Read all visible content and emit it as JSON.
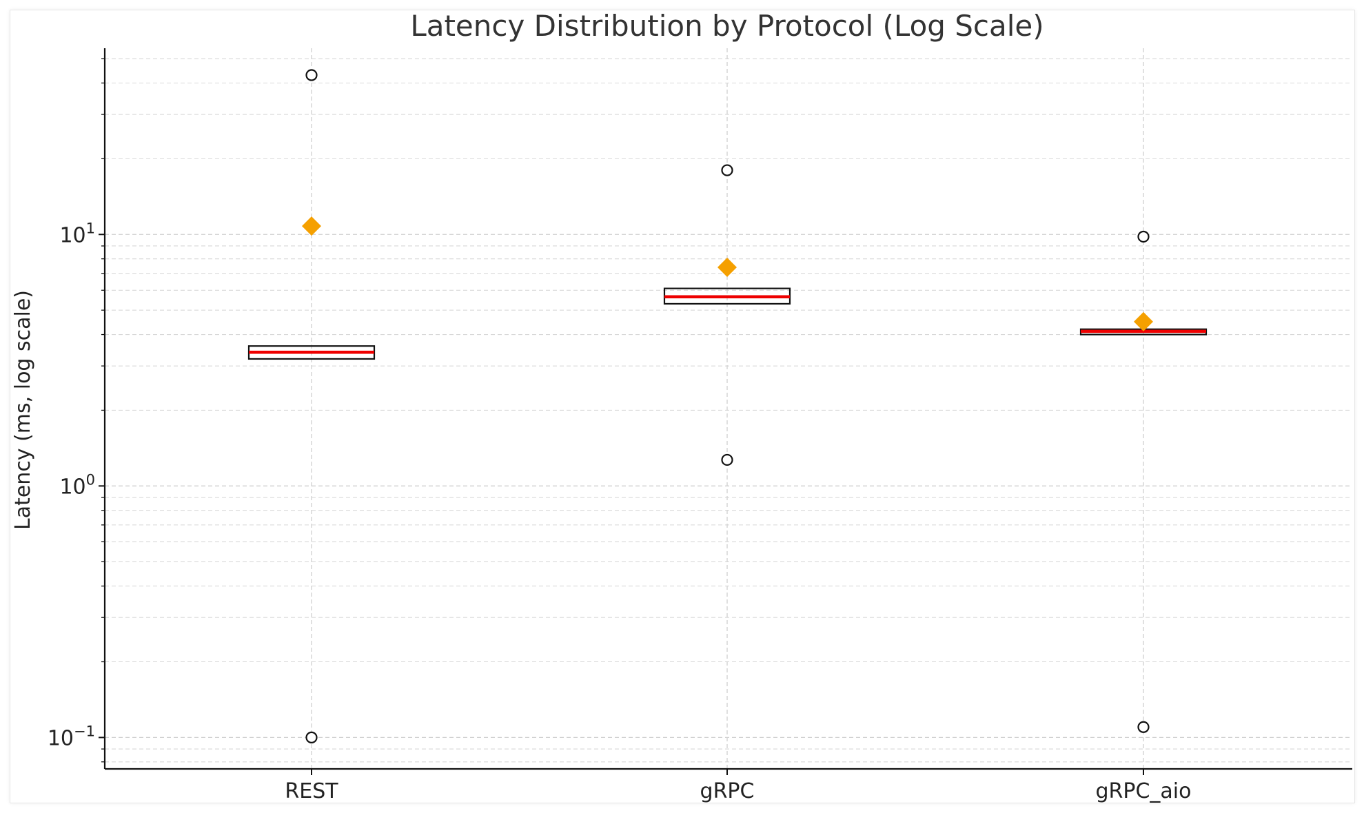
{
  "chart_data": {
    "type": "box",
    "title": "Latency Distribution by Protocol (Log Scale)",
    "xlabel": "",
    "ylabel": "Latency (ms, log scale)",
    "yscale": "log",
    "ylim": [
      0.075,
      55
    ],
    "yticks": [
      {
        "value": 0.1,
        "base": "10",
        "exp": "−1"
      },
      {
        "value": 1,
        "base": "10",
        "exp": "0"
      },
      {
        "value": 10,
        "base": "10",
        "exp": "1"
      }
    ],
    "grid": "both",
    "categories": [
      "REST",
      "gRPC",
      "gRPC_aio"
    ],
    "boxes": [
      {
        "category": "REST",
        "q1": 3.2,
        "median": 3.4,
        "q3": 3.6,
        "mean": 10.8,
        "outliers": [
          43.0,
          0.1
        ]
      },
      {
        "category": "gRPC",
        "q1": 5.3,
        "median": 5.65,
        "q3": 6.1,
        "mean": 7.4,
        "outliers": [
          18.0,
          1.27
        ]
      },
      {
        "category": "gRPC_aio",
        "q1": 4.0,
        "median": 4.12,
        "q3": 4.2,
        "mean": 4.5,
        "outliers": [
          9.8,
          0.11
        ]
      }
    ],
    "colors": {
      "median": "#ee0000",
      "mean": "#f5a000",
      "box": "#111111",
      "outlier": "#111111"
    }
  }
}
